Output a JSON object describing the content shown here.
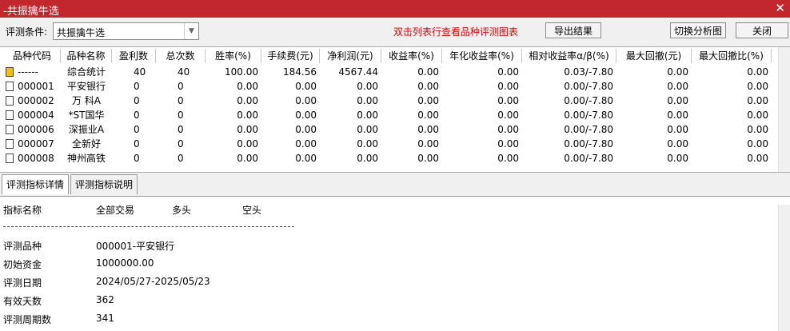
{
  "window": {
    "title": "-共振擒牛选"
  },
  "toolbar": {
    "condition_label": "评测条件:",
    "condition_value": "共振擒牛选",
    "hint": "双击列表行查看品种评测图表",
    "buttons": [
      "导出结果",
      "切换分析图",
      "关闭"
    ]
  },
  "table": {
    "columns": [
      "品种代码",
      "品种名称",
      "盈利数",
      "总次数",
      "胜率(%)",
      "手续费(元)",
      "净利润(元)",
      "收益率(%)",
      "年化收益率(%)",
      "相对收益率α/β(%)",
      "最大回撤(元)",
      "最大回撤比(%)"
    ],
    "rows": [
      [
        "------",
        "综合统计",
        "40",
        "40",
        "100.00",
        "184.56",
        "4567.44",
        "0.00",
        "0.00",
        "0.03/-7.80",
        "0.00",
        "0.00"
      ],
      [
        "000001",
        "平安银行",
        "0",
        "0",
        "0.00",
        "0.00",
        "0.00",
        "0.00",
        "0.00",
        "0.00/-7.80",
        "0.00",
        "0.00"
      ],
      [
        "000002",
        "万 科A",
        "0",
        "0",
        "0.00",
        "0.00",
        "0.00",
        "0.00",
        "0.00",
        "0.00/-7.80",
        "0.00",
        "0.00"
      ],
      [
        "000004",
        "*ST国华",
        "0",
        "0",
        "0.00",
        "0.00",
        "0.00",
        "0.00",
        "0.00",
        "0.00/-7.80",
        "0.00",
        "0.00"
      ],
      [
        "000006",
        "深振业A",
        "0",
        "0",
        "0.00",
        "0.00",
        "0.00",
        "0.00",
        "0.00",
        "0.00/-7.80",
        "0.00",
        "0.00"
      ],
      [
        "000007",
        "全新好",
        "0",
        "0",
        "0.00",
        "0.00",
        "0.00",
        "0.00",
        "0.00",
        "0.00/-7.80",
        "0.00",
        "0.00"
      ],
      [
        "000008",
        "神州高铁",
        "0",
        "0",
        "0.00",
        "0.00",
        "0.00",
        "0.00",
        "0.00",
        "0.00/-7.80",
        "0.00",
        "0.00"
      ]
    ]
  },
  "tabs": [
    "评测指标详情",
    "评测指标说明"
  ],
  "detail": {
    "header": [
      "指标名称",
      "全部交易",
      "多头",
      "空头"
    ],
    "rows": [
      [
        "评测品种",
        "000001-平安银行"
      ],
      [
        "初始资金",
        "1000000.00"
      ],
      [
        "评测日期",
        "2024/05/27-2025/05/23"
      ],
      [
        "有效天数",
        "362"
      ],
      [
        "评测周期数",
        "341"
      ]
    ]
  }
}
